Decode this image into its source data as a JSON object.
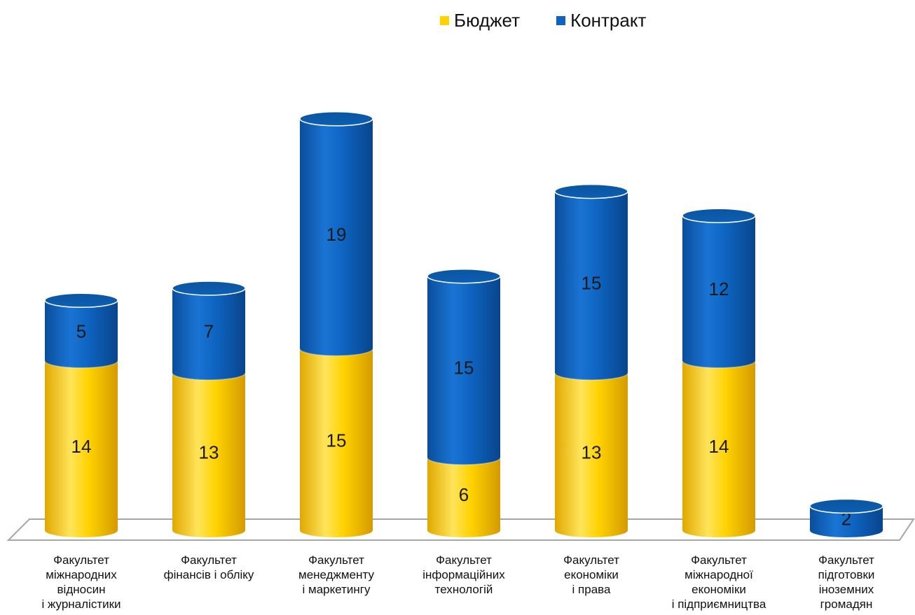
{
  "chart_data": {
    "type": "bar",
    "stacked": true,
    "style": "3d-cylinder",
    "categories": [
      "Факультет\nміжнародних\nвідносин\nі журналістики",
      "Факультет\nфінансів і обліку",
      "Факультет\nменеджменту\nі маркетингу",
      "Факультет\nінформаційних\nтехнологій",
      "Факультет\nекономіки\nі права",
      "Факультет\nміжнародної\nекономіки\nі підприємництва",
      "Факультет\nпідготовки\nіноземних\nгромадян"
    ],
    "series": [
      {
        "name": "Бюджет",
        "values": [
          14,
          13,
          15,
          6,
          13,
          14,
          0
        ],
        "color": "#FFD200"
      },
      {
        "name": "Контракт",
        "values": [
          5,
          7,
          19,
          15,
          15,
          12,
          2
        ],
        "color": "#0E63C0"
      }
    ],
    "data_labels": [
      [
        "14",
        "13",
        "15",
        "6",
        "13",
        "14",
        ""
      ],
      [
        "5",
        "7",
        "19",
        "15",
        "15",
        "12",
        "2"
      ]
    ],
    "legend_position": "top",
    "grid": false,
    "ylim": [
      0,
      34
    ]
  }
}
